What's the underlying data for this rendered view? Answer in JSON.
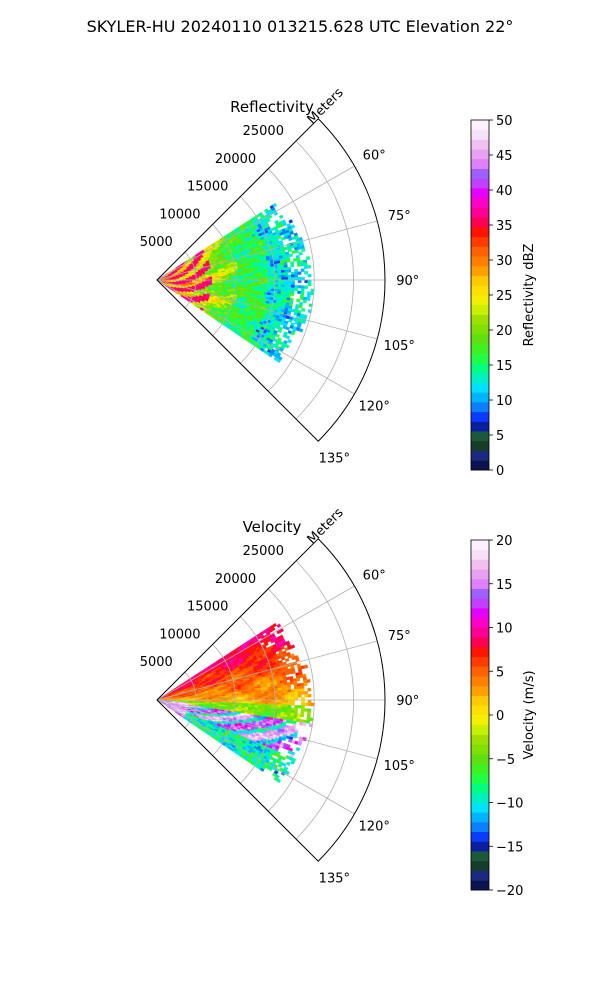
{
  "figure": {
    "suptitle": "SKYLER-HU  20240110  013215.628 UTC Elevation 22°"
  },
  "chart_data": [
    {
      "type": "heatmap",
      "projection": "polar-sector",
      "title": "Reflectivity",
      "radial_axis_label": "Meters",
      "radial_ticks": [
        5000,
        10000,
        15000,
        20000,
        25000
      ],
      "radial_tick_labels": [
        "5000",
        "10000",
        "15000",
        "20000",
        "25000"
      ],
      "rlim": [
        0,
        29000
      ],
      "azimuth_ticks_deg": [
        60,
        75,
        90,
        105,
        120,
        135
      ],
      "azimuth_tick_labels": [
        "60°",
        "75°",
        "90°",
        "105°",
        "120°",
        "135°"
      ],
      "azimuth_range_deg": [
        45,
        135
      ],
      "grid": true,
      "data_extent": {
        "azimuth_deg": [
          57,
          124
        ],
        "max_range_m": [
          15500,
          19500
        ]
      },
      "colorbar": {
        "label": "Reflectivity dBZ",
        "vmin": 0,
        "vmax": 50,
        "ticks": [
          0,
          5,
          10,
          15,
          20,
          25,
          30,
          35,
          40,
          45,
          50
        ],
        "tick_labels": [
          "0",
          "5",
          "10",
          "15",
          "20",
          "25",
          "30",
          "35",
          "40",
          "45",
          "50"
        ],
        "colors": [
          "#0a1450",
          "#1b2a80",
          "#163c2a",
          "#1a5a3a",
          "#0a1ea0",
          "#0a3cff",
          "#0a80ff",
          "#00b4ff",
          "#00e0ff",
          "#00f0c0",
          "#00ff80",
          "#20ff40",
          "#40f020",
          "#60e010",
          "#80e000",
          "#a0e000",
          "#c8f000",
          "#f0f000",
          "#ffe000",
          "#ffc800",
          "#ffa000",
          "#ff8000",
          "#ff6000",
          "#ff3c00",
          "#ff1400",
          "#ff0050",
          "#ff0096",
          "#ff00c8",
          "#e600ff",
          "#c040ff",
          "#a060ff",
          "#e080ff",
          "#e8a0f0",
          "#f0c0f0",
          "#f8e0f8",
          "#fff0ff"
        ]
      },
      "field_description": "low reflectivity (green) across the sector with a band of 25-37 dBZ echoes (yellow/orange/red) within about 10 km of the radar"
    },
    {
      "type": "heatmap",
      "projection": "polar-sector",
      "title": "Velocity",
      "radial_axis_label": "Meters",
      "radial_ticks": [
        5000,
        10000,
        15000,
        20000,
        25000
      ],
      "radial_tick_labels": [
        "5000",
        "10000",
        "15000",
        "20000",
        "25000"
      ],
      "rlim": [
        0,
        29000
      ],
      "azimuth_ticks_deg": [
        60,
        75,
        90,
        105,
        120,
        135
      ],
      "azimuth_tick_labels": [
        "60°",
        "75°",
        "90°",
        "105°",
        "120°",
        "135°"
      ],
      "azimuth_range_deg": [
        45,
        135
      ],
      "grid": true,
      "data_extent": {
        "azimuth_deg": [
          57,
          124
        ],
        "max_range_m": [
          15500,
          19500
        ]
      },
      "colorbar": {
        "label": "Velocity (m/s)",
        "vmin": -20,
        "vmax": 20,
        "ticks": [
          -20,
          -15,
          -10,
          -5,
          0,
          5,
          10,
          15,
          20
        ],
        "tick_labels": [
          "−20",
          "−15",
          "−10",
          "−5",
          "0",
          "5",
          "10",
          "15",
          "20"
        ],
        "colors": [
          "#0a1450",
          "#1b2a80",
          "#163c2a",
          "#1a5a3a",
          "#0a1ea0",
          "#0a3cff",
          "#0a80ff",
          "#00b4ff",
          "#00e0ff",
          "#00f0c0",
          "#00ff80",
          "#20ff40",
          "#40f020",
          "#60e010",
          "#80e000",
          "#a0e000",
          "#c8f000",
          "#f0f000",
          "#ffe000",
          "#ffc800",
          "#ffa000",
          "#ff8000",
          "#ff6000",
          "#ff3c00",
          "#ff1400",
          "#ff0050",
          "#ff0096",
          "#ff00c8",
          "#e600ff",
          "#c040ff",
          "#a060ff",
          "#e080ff",
          "#e8a0f0",
          "#f0c0f0",
          "#f8e0f8",
          "#fff0ff"
        ]
      },
      "field_description": "outbound yellow/orange (0 to 10 m/s) to the north-east, inbound green/cyan (-5 to -12 m/s) to the south-east, with a narrow band of strong red/magenta folded velocities near 100-110 degrees"
    }
  ]
}
